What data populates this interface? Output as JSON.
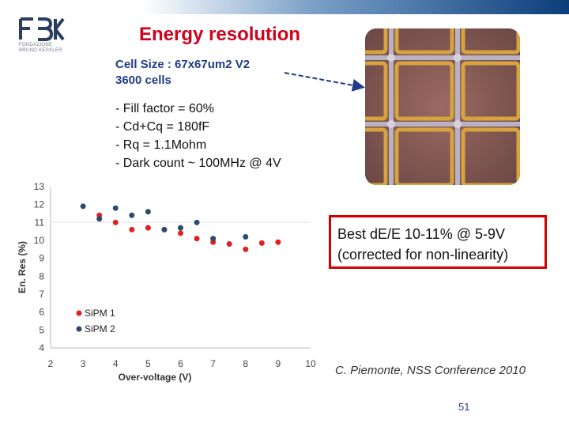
{
  "header": {
    "title": "Energy resolution"
  },
  "logo": {
    "text": "FBK",
    "subtitle_line1": "FONDAZIONE",
    "subtitle_line2": "BRUNO KESSLER"
  },
  "specs": {
    "cell_size": "Cell Size : 67x67um2 V2",
    "cells": "3600 cells"
  },
  "params": {
    "items": [
      "- Fill factor = 60%",
      "- Cd+Cq = 180fF",
      "- Rq = 1.1Mohm",
      "- Dark count ~ 100MHz @ 4V"
    ]
  },
  "callout": {
    "line1": "Best dE/E 10-11% @ 5-9V",
    "line2": "(corrected for non-linearity)"
  },
  "citation": "C. Piemonte, NSS Conference 2010",
  "page_number": "51",
  "colors": {
    "title_red": "#d0021b",
    "navy": "#1f3c88",
    "sipm1": "#e02020",
    "sipm2": "#2c4a6e",
    "box_red": "#d10000"
  },
  "chart_data": {
    "type": "scatter",
    "xlabel": "Over-voltage (V)",
    "ylabel": "En. Res (%)",
    "xlim": [
      2,
      10
    ],
    "ylim": [
      4,
      13
    ],
    "x_ticks": [
      "2",
      "3",
      "4",
      "5",
      "6",
      "7",
      "8",
      "9",
      "10"
    ],
    "y_ticks": [
      "4",
      "5",
      "6",
      "7",
      "8",
      "9",
      "10",
      "11",
      "12",
      "13"
    ],
    "legend_position": "bottom-left",
    "series": [
      {
        "name": "SiPM 1",
        "color": "#e02020",
        "points": [
          [
            3.5,
            11.4
          ],
          [
            4.0,
            11.0
          ],
          [
            4.5,
            10.6
          ],
          [
            5.0,
            10.7
          ],
          [
            5.5,
            10.6
          ],
          [
            6.0,
            10.4
          ],
          [
            6.5,
            10.1
          ],
          [
            7.0,
            9.9
          ],
          [
            7.5,
            9.8
          ],
          [
            8.0,
            9.5
          ],
          [
            8.5,
            9.85
          ],
          [
            9.0,
            9.9
          ]
        ]
      },
      {
        "name": "SiPM 2",
        "color": "#2c4a6e",
        "points": [
          [
            3.0,
            11.9
          ],
          [
            3.5,
            11.2
          ],
          [
            4.0,
            11.8
          ],
          [
            4.5,
            11.4
          ],
          [
            5.0,
            11.6
          ],
          [
            5.5,
            10.6
          ],
          [
            6.0,
            10.7
          ],
          [
            6.5,
            11.0
          ],
          [
            7.0,
            10.1
          ],
          [
            8.0,
            10.2
          ]
        ]
      }
    ]
  }
}
